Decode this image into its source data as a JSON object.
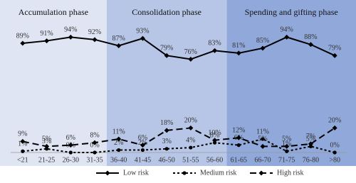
{
  "chart_data": {
    "type": "line",
    "categories": [
      "<21",
      "21-25",
      "26-30",
      "31-35",
      "36-40",
      "41-45",
      "46-50",
      "51-55",
      "56-60",
      "61-65",
      "66-70",
      "71-75",
      "76-80",
      ">80"
    ],
    "ylim": [
      0,
      100
    ],
    "phases": [
      {
        "name": "Accumulation phase",
        "color": "#dfe5f2",
        "from": "<21",
        "to": "31-35"
      },
      {
        "name": "Consolidation phase",
        "color": "#b7c6e6",
        "from": "36-40",
        "to": "56-60"
      },
      {
        "name": "Spending and gifting phase",
        "color": "#91a9da",
        "from": "61-65",
        "to": ">80"
      }
    ],
    "series": [
      {
        "name": "Low risk",
        "color": "#000000",
        "dash": "none",
        "marker": "diamond",
        "values": [
          89,
          91,
          94,
          92,
          87,
          93,
          79,
          76,
          83,
          81,
          85,
          94,
          88,
          79
        ],
        "value_labels": [
          "89%",
          "91%",
          "94%",
          "92%",
          "87%",
          "93%",
          "79%",
          "76%",
          "83%",
          "81%",
          "85%",
          "94%",
          "88%",
          "79%"
        ]
      },
      {
        "name": "Medium risk",
        "color": "#000000",
        "dash": "3,3",
        "marker": "circle",
        "values": [
          1,
          3,
          0,
          0,
          2,
          2,
          3,
          4,
          8,
          6,
          11,
          1,
          5,
          0
        ],
        "value_labels": [
          "1%",
          "3%",
          "0%",
          "0%",
          "2%",
          "2%",
          "3%",
          "4%",
          "8%",
          "6%",
          "11%",
          "1%",
          "5%",
          "0%"
        ]
      },
      {
        "name": "High risk",
        "color": "#000000",
        "dash": "9,5",
        "marker": "diamond",
        "values": [
          9,
          5,
          6,
          8,
          11,
          6,
          18,
          20,
          10,
          12,
          5,
          5,
          7,
          20
        ],
        "value_labels": [
          "9%",
          "5%",
          "6%",
          "8%",
          "11%",
          "6%",
          "18%",
          "20%",
          "10%",
          "12%",
          "5%",
          "5%",
          "7%",
          "20%"
        ]
      }
    ]
  }
}
